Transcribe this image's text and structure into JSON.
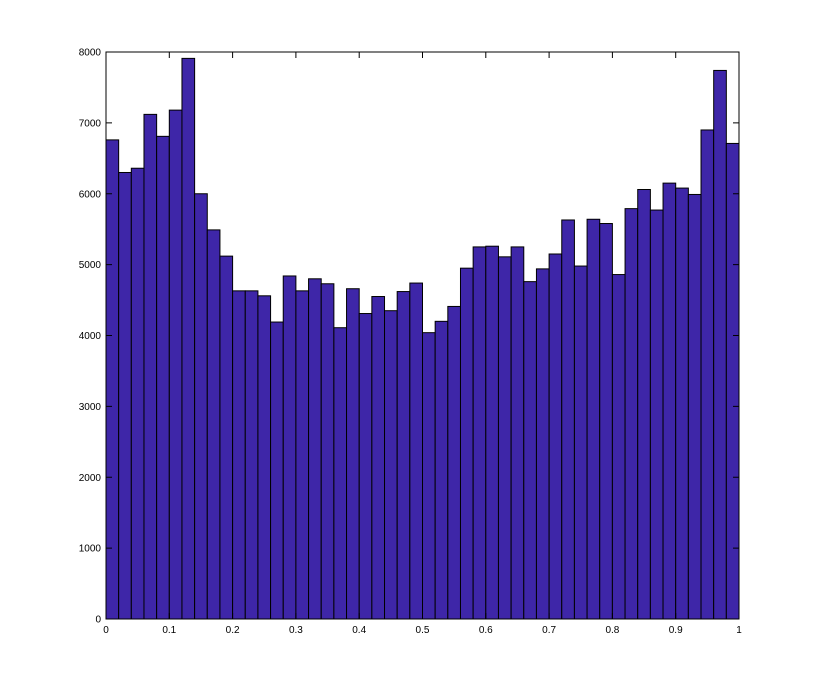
{
  "chart_data": {
    "type": "bar",
    "title": "",
    "xlabel": "",
    "ylabel": "",
    "xlim": [
      0,
      1
    ],
    "ylim": [
      0,
      8000
    ],
    "grid": false,
    "bar_color": "#3e26a8",
    "edge_color": "#000000",
    "bin_width": 0.02,
    "bin_start": 0,
    "values": [
      6760,
      6300,
      6360,
      7120,
      6810,
      7180,
      7910,
      6000,
      5490,
      5120,
      4630,
      4630,
      4560,
      4190,
      4840,
      4630,
      4800,
      4730,
      4110,
      4660,
      4310,
      4550,
      4350,
      4620,
      4740,
      4040,
      4200,
      4410,
      4950,
      5250,
      5260,
      5110,
      5250,
      4760,
      4940,
      5150,
      5630,
      4980,
      5640,
      5580,
      4860,
      5790,
      6060,
      5770,
      6150,
      6080,
      5990,
      6900,
      7740,
      6710
    ],
    "x_ticks": [
      0,
      0.1,
      0.2,
      0.3,
      0.4,
      0.5,
      0.6,
      0.7,
      0.8,
      0.9,
      1
    ],
    "x_tick_labels": [
      "0",
      "0.1",
      "0.2",
      "0.3",
      "0.4",
      "0.5",
      "0.6",
      "0.7",
      "0.8",
      "0.9",
      "1"
    ],
    "y_ticks": [
      0,
      1000,
      2000,
      3000,
      4000,
      5000,
      6000,
      7000,
      8000
    ],
    "y_tick_labels": [
      "0",
      "1000",
      "2000",
      "3000",
      "4000",
      "5000",
      "6000",
      "7000",
      "8000"
    ]
  }
}
